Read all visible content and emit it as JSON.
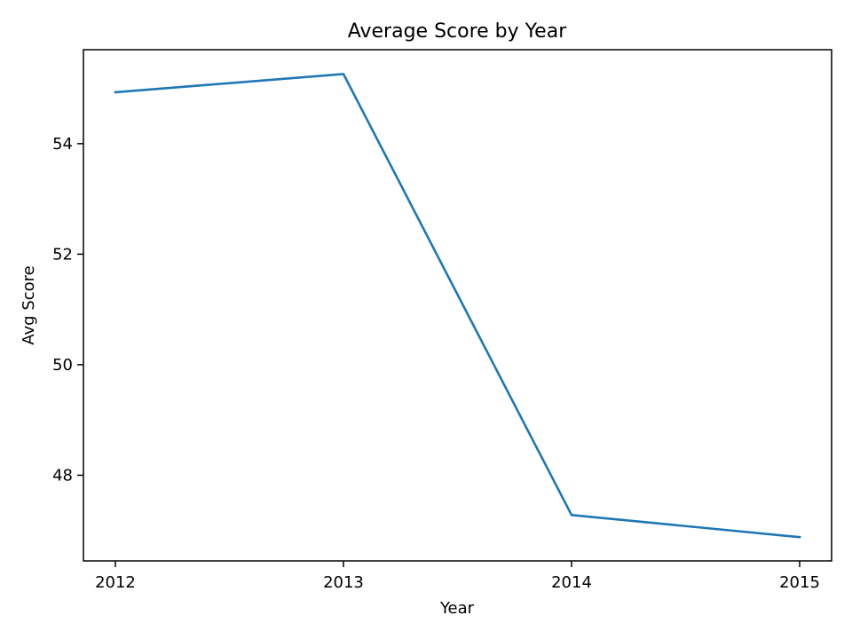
{
  "chart_data": {
    "type": "line",
    "title": "Average Score by Year",
    "xlabel": "Year",
    "ylabel": "Avg Score",
    "x": [
      2012,
      2013,
      2014,
      2015
    ],
    "x_ticks": [
      "2012",
      "2013",
      "2014",
      "2015"
    ],
    "y_ticks": [
      48,
      50,
      52,
      54
    ],
    "ylim": [
      46.45,
      55.7
    ],
    "xlim": [
      2011.86,
      2015.14
    ],
    "grid": false,
    "legend": "none",
    "series": [
      {
        "values": [
          54.93,
          55.26,
          47.28,
          46.88
        ],
        "color": "#1f77b4"
      }
    ]
  }
}
